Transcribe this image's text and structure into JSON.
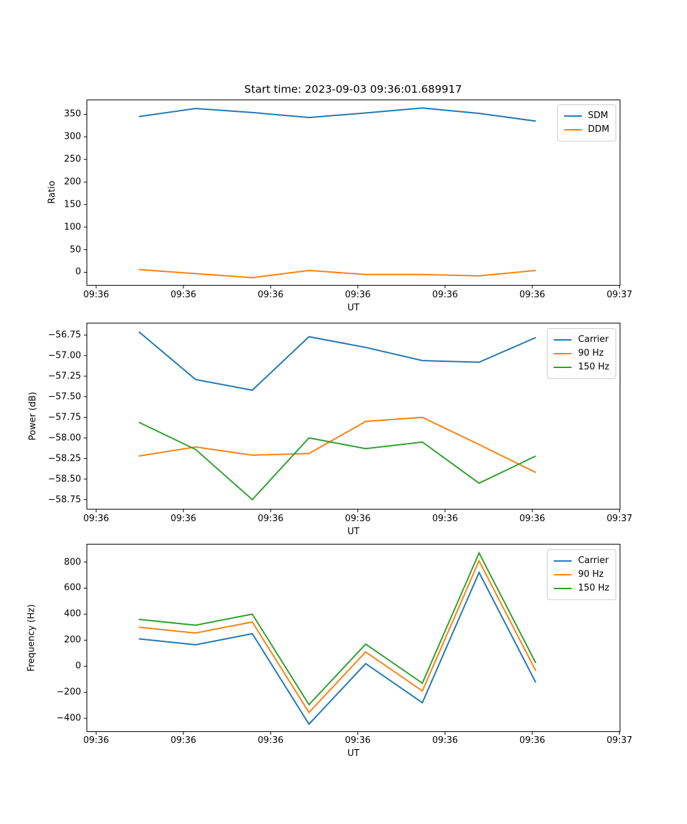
{
  "title": "Start time: 2023-09-03 09:36:01.689917",
  "colors": {
    "blue": "#1f77b4",
    "orange": "#ff7f0e",
    "green": "#2ca02c",
    "spine": "#000000",
    "legend_border": "#cccccc"
  },
  "chart_data": [
    {
      "type": "line",
      "title": "Start time: 2023-09-03 09:36:01.689917",
      "xlabel": "UT",
      "ylabel": "Ratio",
      "legend_position": "upper right",
      "grid": false,
      "x_seconds_after_09_36_00": [
        4.9,
        11.4,
        17.9,
        24.4,
        30.9,
        37.4,
        43.9,
        50.4
      ],
      "xlim": [
        -1.1,
        60.1
      ],
      "ylim": [
        -29.7,
        382.7
      ],
      "xticks": {
        "seconds": [
          0,
          10,
          20,
          30,
          40,
          50,
          60
        ],
        "labels": [
          "09:36",
          "09:36",
          "09:36",
          "09:36",
          "09:36",
          "09:36",
          "09:37"
        ]
      },
      "yticks": {
        "values": [
          0,
          50,
          100,
          150,
          200,
          250,
          300,
          350
        ],
        "labels": [
          "0",
          "50",
          "100",
          "150",
          "200",
          "250",
          "300",
          "350"
        ]
      },
      "series": [
        {
          "name": "SDM",
          "color": "#1f77b4",
          "values": [
            345,
            363,
            354,
            343,
            353,
            364,
            352,
            335
          ]
        },
        {
          "name": "DDM",
          "color": "#ff7f0e",
          "values": [
            6,
            -3,
            -12,
            4,
            -5,
            -5,
            -8,
            4
          ]
        }
      ]
    },
    {
      "type": "line",
      "title": "",
      "xlabel": "UT",
      "ylabel": "Power (dB)",
      "legend_position": "upper right",
      "grid": false,
      "x_seconds_after_09_36_00": [
        4.9,
        11.4,
        17.9,
        24.4,
        30.9,
        37.4,
        43.9,
        50.4
      ],
      "xlim": [
        -1.1,
        60.1
      ],
      "ylim": [
        -58.87,
        -56.6
      ],
      "xticks": {
        "seconds": [
          0,
          10,
          20,
          30,
          40,
          50,
          60
        ],
        "labels": [
          "09:36",
          "09:36",
          "09:36",
          "09:36",
          "09:36",
          "09:36",
          "09:37"
        ]
      },
      "yticks": {
        "values": [
          -56.75,
          -57.0,
          -57.25,
          -57.5,
          -57.75,
          -58.0,
          -58.25,
          -58.5,
          -58.75
        ],
        "labels": [
          "−56.75",
          "−57.00",
          "−57.25",
          "−57.50",
          "−57.75",
          "−58.00",
          "−58.25",
          "−58.50",
          "−58.75"
        ]
      },
      "series": [
        {
          "name": "Carrier",
          "color": "#1f77b4",
          "values": [
            -56.71,
            -57.29,
            -57.42,
            -56.77,
            -56.9,
            -57.06,
            -57.08,
            -56.78
          ]
        },
        {
          "name": "90 Hz",
          "color": "#ff7f0e",
          "values": [
            -58.22,
            -58.11,
            -58.21,
            -58.19,
            -57.8,
            -57.75,
            -58.08,
            -58.42
          ]
        },
        {
          "name": "150 Hz",
          "color": "#2ca02c",
          "values": [
            -57.81,
            -58.14,
            -58.75,
            -58.0,
            -58.13,
            -58.05,
            -58.55,
            -58.22
          ]
        }
      ]
    },
    {
      "type": "line",
      "title": "",
      "xlabel": "UT",
      "ylabel": "Frequency (Hz)",
      "legend_position": "upper right",
      "grid": false,
      "x_seconds_after_09_36_00": [
        4.9,
        11.4,
        17.9,
        24.4,
        30.9,
        37.4,
        43.9,
        50.4
      ],
      "xlim": [
        -1.1,
        60.1
      ],
      "ylim": [
        -505,
        940
      ],
      "xticks": {
        "seconds": [
          0,
          10,
          20,
          30,
          40,
          50,
          60
        ],
        "labels": [
          "09:36",
          "09:36",
          "09:36",
          "09:36",
          "09:36",
          "09:36",
          "09:37"
        ]
      },
      "yticks": {
        "values": [
          -400,
          -200,
          0,
          200,
          400,
          600,
          800
        ],
        "labels": [
          "−400",
          "−200",
          "0",
          "200",
          "400",
          "600",
          "800"
        ]
      },
      "series": [
        {
          "name": "Carrier",
          "color": "#1f77b4",
          "values": [
            210,
            165,
            250,
            -445,
            20,
            -280,
            720,
            -125
          ]
        },
        {
          "name": "90 Hz",
          "color": "#ff7f0e",
          "values": [
            300,
            255,
            340,
            -355,
            110,
            -190,
            810,
            -35
          ]
        },
        {
          "name": "150 Hz",
          "color": "#2ca02c",
          "values": [
            360,
            315,
            400,
            -295,
            170,
            -130,
            870,
            25
          ]
        }
      ]
    }
  ]
}
